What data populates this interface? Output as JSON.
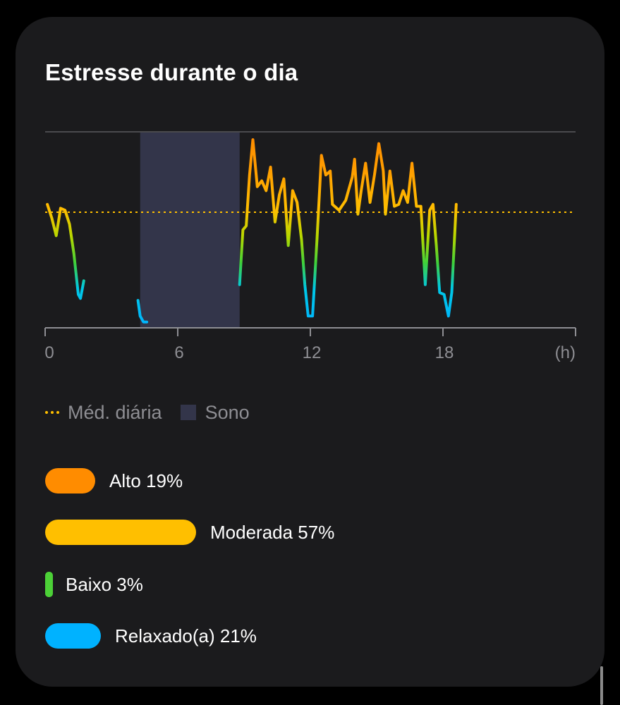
{
  "colors": {
    "alto": "#ff8c00",
    "moderada": "#ffbf00",
    "baixo": "#4cd137",
    "relaxado": "#00b2ff",
    "avg_line": "#ffbf00",
    "sleep": "#33354a"
  },
  "chart_data": {
    "type": "line",
    "title": "Estresse durante o dia",
    "xlabel": "",
    "ylabel": "",
    "x_unit": "(h)",
    "xlim": [
      0,
      24
    ],
    "ylim": [
      0,
      100
    ],
    "x_ticks": [
      0,
      6,
      12,
      18
    ],
    "x_tick_labels": [
      "0",
      "6",
      "12",
      "18"
    ],
    "grid": false,
    "legend_position": "bottom-left",
    "legend": [
      {
        "name": "Méd. diária",
        "icon": "dotted-line"
      },
      {
        "name": "Sono",
        "icon": "square"
      }
    ],
    "daily_average": 59,
    "sleep_interval": [
      4.3,
      8.8
    ],
    "series": [
      {
        "values": [
          [
            0.1,
            63
          ],
          [
            0.3,
            56
          ],
          [
            0.5,
            47
          ],
          [
            0.7,
            61
          ],
          [
            0.9,
            60
          ],
          [
            1.1,
            53
          ],
          [
            1.3,
            38
          ],
          [
            1.5,
            17
          ],
          [
            1.6,
            15
          ],
          [
            1.75,
            24
          ]
        ]
      },
      {
        "values": [
          [
            4.2,
            14
          ],
          [
            4.3,
            6
          ],
          [
            4.45,
            3
          ],
          [
            4.6,
            3
          ]
        ]
      },
      {
        "values": [
          [
            8.8,
            22
          ],
          [
            8.95,
            50
          ],
          [
            9.1,
            52
          ],
          [
            9.25,
            78
          ],
          [
            9.4,
            96
          ],
          [
            9.6,
            72
          ],
          [
            9.8,
            75
          ],
          [
            10.0,
            70
          ],
          [
            10.2,
            82
          ],
          [
            10.4,
            54
          ],
          [
            10.6,
            68
          ],
          [
            10.8,
            76
          ],
          [
            11.0,
            42
          ],
          [
            11.2,
            70
          ],
          [
            11.4,
            64
          ],
          [
            11.6,
            45
          ],
          [
            11.75,
            22
          ],
          [
            11.9,
            6
          ],
          [
            12.1,
            6
          ],
          [
            12.3,
            45
          ],
          [
            12.5,
            88
          ],
          [
            12.7,
            78
          ],
          [
            12.9,
            80
          ],
          [
            13.0,
            63
          ],
          [
            13.3,
            60
          ],
          [
            13.6,
            65
          ],
          [
            13.9,
            77
          ],
          [
            14.0,
            86
          ],
          [
            14.15,
            58
          ],
          [
            14.3,
            70
          ],
          [
            14.5,
            84
          ],
          [
            14.7,
            64
          ],
          [
            14.9,
            78
          ],
          [
            15.1,
            94
          ],
          [
            15.3,
            80
          ],
          [
            15.4,
            58
          ],
          [
            15.6,
            80
          ],
          [
            15.8,
            62
          ],
          [
            16.0,
            63
          ],
          [
            16.2,
            70
          ],
          [
            16.4,
            64
          ],
          [
            16.6,
            84
          ],
          [
            16.8,
            62
          ],
          [
            17.0,
            62
          ],
          [
            17.2,
            22
          ],
          [
            17.4,
            60
          ],
          [
            17.55,
            63
          ],
          [
            17.7,
            42
          ],
          [
            17.85,
            18
          ],
          [
            18.05,
            17
          ],
          [
            18.25,
            6
          ],
          [
            18.4,
            18
          ],
          [
            18.6,
            63
          ]
        ]
      }
    ]
  },
  "distribution": [
    {
      "label": "Alto 19%",
      "percent": 19,
      "color": "#ff8c00"
    },
    {
      "label": "Moderada 57%",
      "percent": 57,
      "color": "#ffbf00"
    },
    {
      "label": "Baixo 3%",
      "percent": 3,
      "color": "#4cd137"
    },
    {
      "label": "Relaxado(a) 21%",
      "percent": 21,
      "color": "#00b2ff"
    }
  ]
}
